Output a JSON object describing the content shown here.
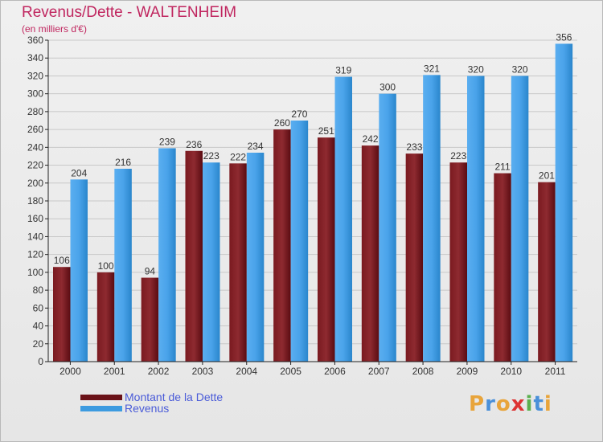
{
  "title": "Revenus/Dette - WALTENHEIM",
  "subtitle": "(en milliers d'€)",
  "logo": {
    "text": "Proxiti",
    "letters": [
      "P",
      "r",
      "o",
      "x",
      "i",
      "t",
      "i"
    ],
    "colors": [
      "#e8a43a",
      "#4a90d9",
      "#e8a43a",
      "#d33",
      "#5ab04e",
      "#4a90d9",
      "#e8a43a"
    ]
  },
  "colors": {
    "dette": "#6a1218",
    "revenus": "#3d9be0",
    "grid": "#c8c8c8",
    "axis": "#222"
  },
  "legend": [
    {
      "label": "Montant de la Dette",
      "color": "#6a1218"
    },
    {
      "label": "Revenus",
      "color": "#3d9be0"
    }
  ],
  "chart_data": {
    "type": "bar",
    "categories": [
      "2000",
      "2001",
      "2002",
      "2003",
      "2004",
      "2005",
      "2006",
      "2007",
      "2008",
      "2009",
      "2010",
      "2011"
    ],
    "series": [
      {
        "name": "Montant de la Dette",
        "values": [
          106,
          100,
          94,
          236,
          222,
          260,
          251,
          242,
          233,
          223,
          211,
          201
        ]
      },
      {
        "name": "Revenus",
        "values": [
          204,
          216,
          239,
          223,
          234,
          270,
          319,
          300,
          321,
          320,
          320,
          356
        ]
      }
    ],
    "ylim": [
      0,
      360
    ],
    "yticks": [
      0,
      20,
      40,
      60,
      80,
      100,
      120,
      140,
      160,
      180,
      200,
      220,
      240,
      260,
      280,
      300,
      320,
      340,
      360
    ],
    "grid": true
  }
}
